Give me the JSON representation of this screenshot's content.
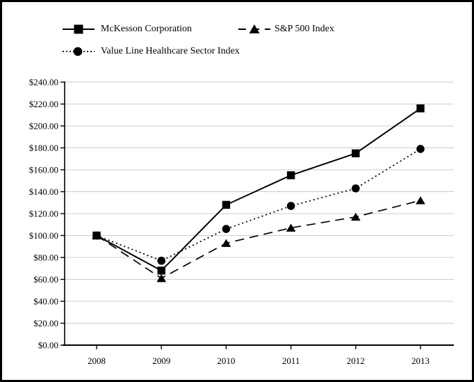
{
  "chart_data": {
    "type": "line",
    "title": "",
    "xlabel": "",
    "ylabel": "",
    "categories": [
      "2008",
      "2009",
      "2010",
      "2011",
      "2012",
      "2013"
    ],
    "series": [
      {
        "name": "McKesson Corporation",
        "marker": "square",
        "line_style": "solid",
        "values": [
          100,
          68,
          128,
          155,
          175,
          216
        ]
      },
      {
        "name": "S&P 500 Index",
        "marker": "triangle",
        "line_style": "dashed",
        "values": [
          100,
          61,
          93,
          107,
          117,
          132
        ]
      },
      {
        "name": "Value Line Healthcare Sector Index",
        "marker": "circle",
        "line_style": "dotted",
        "values": [
          100,
          77,
          106,
          127,
          143,
          179
        ]
      }
    ],
    "ylim": [
      0,
      240
    ],
    "y_ticks": [
      {
        "value": 0,
        "label": "$0.00"
      },
      {
        "value": 20,
        "label": "$20.00"
      },
      {
        "value": 40,
        "label": "$40.00"
      },
      {
        "value": 60,
        "label": "$60.00"
      },
      {
        "value": 80,
        "label": "$80.00"
      },
      {
        "value": 100,
        "label": "$100.00"
      },
      {
        "value": 120,
        "label": "$120.00"
      },
      {
        "value": 140,
        "label": "$140.00"
      },
      {
        "value": 160,
        "label": "$160.00"
      },
      {
        "value": 180,
        "label": "$180.00"
      },
      {
        "value": 200,
        "label": "$200.00"
      },
      {
        "value": 220,
        "label": "$220.00"
      },
      {
        "value": 240,
        "label": "$240.00"
      }
    ],
    "grid": "horizontal",
    "legend_position": "top",
    "colors": {
      "line": "#000000",
      "marker": "#000000",
      "grid": "#cccccc",
      "background": "#ffffff",
      "border": "#000000",
      "text": "#000000"
    }
  }
}
